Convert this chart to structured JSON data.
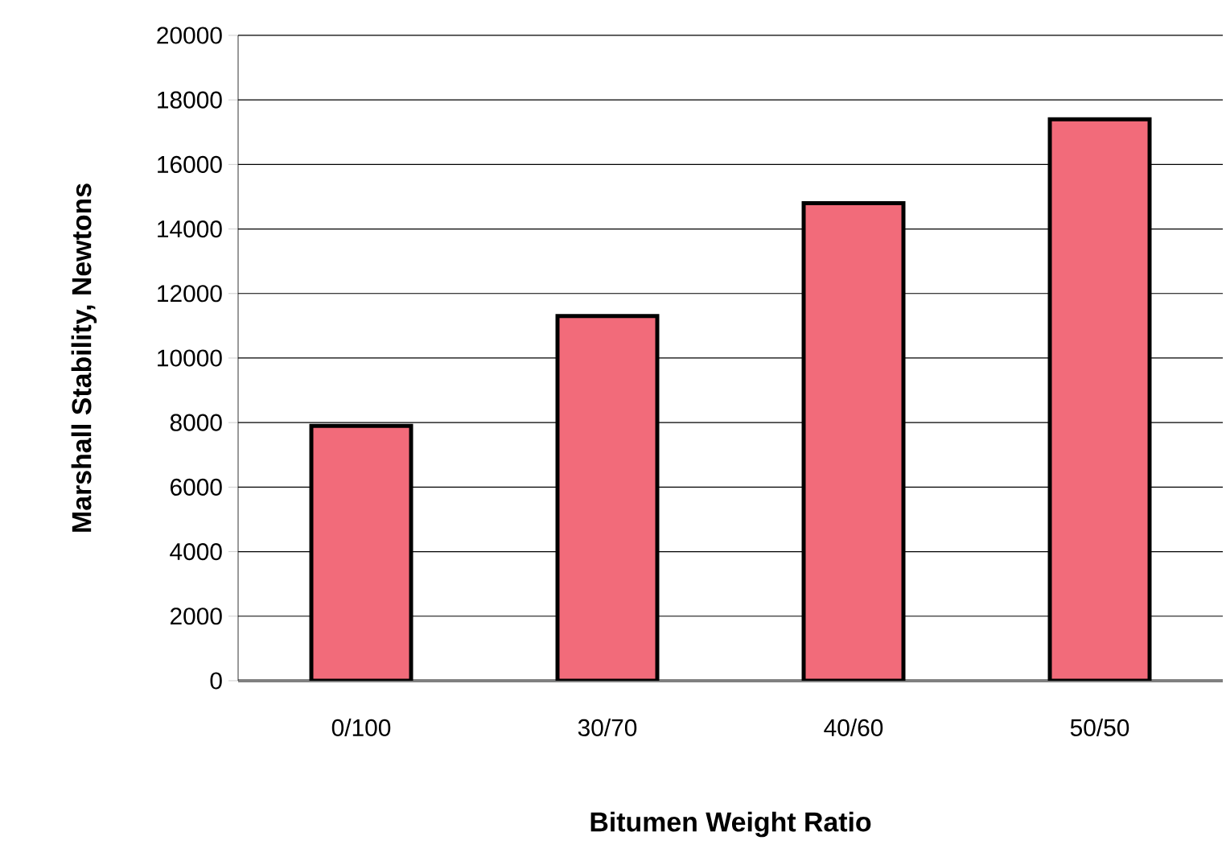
{
  "chart_data": {
    "type": "bar",
    "xlabel": "Bitumen Weight Ratio",
    "ylabel": "Marshall Stability, Newtons",
    "categories": [
      "0/100",
      "30/70",
      "40/60",
      "50/50"
    ],
    "values": [
      7900,
      11300,
      14800,
      17400
    ],
    "color": "#f26b7a",
    "ylim": [
      0,
      20000
    ],
    "yticks": [
      0,
      2000,
      4000,
      6000,
      8000,
      10000,
      12000,
      14000,
      16000,
      18000,
      20000
    ],
    "grid": "y"
  }
}
